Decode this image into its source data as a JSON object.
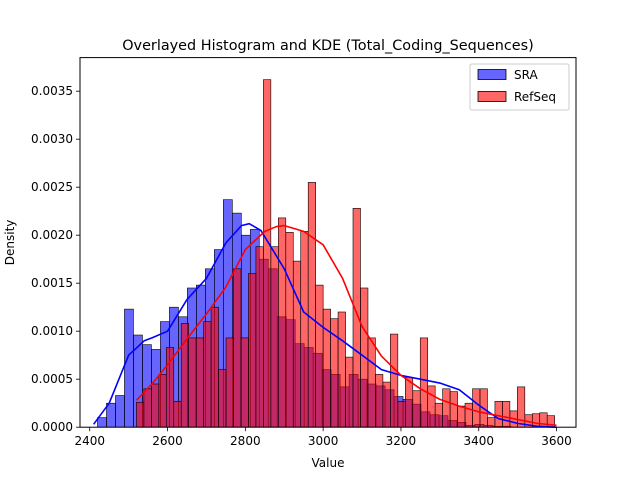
{
  "chart_data": {
    "type": "histogram",
    "title": "Overlayed Histogram and KDE (Total_Coding_Sequences)",
    "xlabel": "Value",
    "ylabel": "Density",
    "xlim": [
      2375,
      3650
    ],
    "ylim": [
      0,
      0.00385
    ],
    "x_ticks": [
      2400,
      2600,
      2800,
      3000,
      3200,
      3400,
      3600
    ],
    "x_tick_labels": [
      "2400",
      "2600",
      "2800",
      "3000",
      "3200",
      "3400",
      "3600"
    ],
    "y_ticks": [
      0,
      0.0005,
      0.001,
      0.0015,
      0.002,
      0.0025,
      0.003,
      0.0035
    ],
    "y_tick_labels": [
      "0.0000",
      "0.0005",
      "0.0010",
      "0.0015",
      "0.0020",
      "0.0025",
      "0.0030",
      "0.0035"
    ],
    "grid": false,
    "legend_position": "top-right",
    "series": [
      {
        "name": "SRA",
        "color": "#0000ff",
        "bin_start": 2420,
        "bin_width": 23.1,
        "densities": [
          0.0001,
          0.00025,
          0.00033,
          0.00123,
          0.00096,
          0.00086,
          0.00081,
          0.0011,
          0.00125,
          0.00115,
          0.00145,
          0.00148,
          0.00165,
          0.00185,
          0.00237,
          0.00223,
          0.002,
          0.00206,
          0.00175,
          0.00165,
          0.00115,
          0.00112,
          0.00087,
          0.00083,
          0.00077,
          0.0006,
          0.00055,
          0.00042,
          0.00055,
          0.0005,
          0.00045,
          0.00043,
          0.00039,
          0.00032,
          0.00029,
          0.00024,
          0.00016,
          0.00013,
          0.00012,
          7e-05,
          5e-05,
          2e-05,
          3e-05,
          2e-05,
          1e-05,
          1e-05
        ],
        "kde": {
          "x": [
            2410,
            2450,
            2500,
            2540,
            2560,
            2600,
            2650,
            2700,
            2750,
            2790,
            2810,
            2840,
            2900,
            2950,
            3000,
            3050,
            3100,
            3150,
            3200,
            3250,
            3300,
            3350,
            3400,
            3450,
            3500,
            3550,
            3600
          ],
          "y": [
            3e-05,
            0.00025,
            0.00075,
            0.0009,
            0.00093,
            0.001,
            0.00133,
            0.00155,
            0.00192,
            0.0021,
            0.00212,
            0.00205,
            0.00165,
            0.0012,
            0.00104,
            0.0009,
            0.00075,
            0.0006,
            0.00054,
            0.0005,
            0.00046,
            0.00039,
            0.00023,
            9e-05,
            4e-05,
            1e-05,
            0.0
          ]
        }
      },
      {
        "name": "RefSeq",
        "color": "#ff0000",
        "bin_start": 2520,
        "bin_width": 19.2,
        "densities": [
          0.00026,
          0.0004,
          0.00045,
          0.00055,
          0.00083,
          0.00027,
          0.00108,
          0.00093,
          0.00093,
          0.0011,
          0.00125,
          0.0006,
          0.00093,
          0.00165,
          0.00093,
          0.0016,
          0.00188,
          0.00362,
          0.00188,
          0.00218,
          0.00203,
          0.00173,
          0.00204,
          0.00255,
          0.00148,
          0.00123,
          0.00113,
          0.0012,
          0.00073,
          0.00228,
          0.00145,
          0.00093,
          0.00055,
          0.00047,
          0.00097,
          0.00027,
          0.00052,
          0.00038,
          0.00093,
          0.00043,
          0.00025,
          0.0004,
          0.00037,
          0.00022,
          0.00025,
          0.0004,
          0.0004,
          0.0001,
          0.00027,
          0.00027,
          0.00017,
          0.00042,
          0.00013,
          0.00014,
          0.00015,
          0.00012
        ],
        "kde": {
          "x": [
            2520,
            2560,
            2600,
            2650,
            2700,
            2750,
            2800,
            2850,
            2880,
            2900,
            2950,
            3000,
            3050,
            3100,
            3150,
            3200,
            3250,
            3300,
            3350,
            3400,
            3450,
            3500,
            3550,
            3600
          ],
          "y": [
            0.00028,
            0.00045,
            0.00065,
            0.00092,
            0.00118,
            0.00146,
            0.00185,
            0.00204,
            0.00209,
            0.0021,
            0.00204,
            0.0019,
            0.00155,
            0.00105,
            0.00074,
            0.00054,
            0.0004,
            0.00029,
            0.00022,
            0.00016,
            0.00012,
            8e-05,
            4e-05,
            2e-05
          ]
        }
      }
    ]
  }
}
